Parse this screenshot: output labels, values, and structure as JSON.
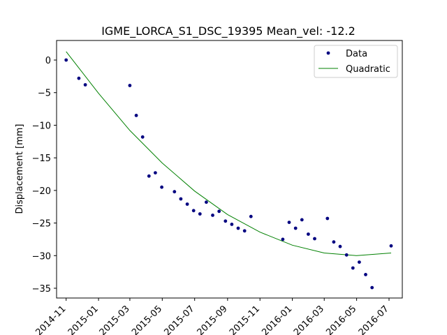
{
  "chart_data": {
    "type": "scatter",
    "title": "IGME_LORCA_S1_DSC_19395    Mean_vel: -12.2",
    "xlabel": "",
    "ylabel": "Displacement [mm]",
    "xlim": [
      "2014-10-14",
      "2016-07-26"
    ],
    "ylim": [
      -36.5,
      3
    ],
    "grid": false,
    "legend_position": "top-right",
    "x_ticks": [
      "2014-11",
      "2015-01",
      "2015-03",
      "2015-05",
      "2015-07",
      "2015-09",
      "2015-11",
      "2016-01",
      "2016-03",
      "2016-05",
      "2016-07"
    ],
    "y_ticks": [
      0,
      -5,
      -10,
      -15,
      -20,
      -25,
      -30,
      -35
    ],
    "series": [
      {
        "name": "Data",
        "style": "points",
        "color": "#000080",
        "x": [
          "2014-11-01",
          "2014-11-25",
          "2014-12-07",
          "2015-03-01",
          "2015-03-13",
          "2015-03-25",
          "2015-04-06",
          "2015-04-18",
          "2015-04-30",
          "2015-05-24",
          "2015-06-05",
          "2015-06-17",
          "2015-06-29",
          "2015-07-11",
          "2015-07-23",
          "2015-08-04",
          "2015-08-16",
          "2015-08-28",
          "2015-09-09",
          "2015-09-21",
          "2015-10-03",
          "2015-10-15",
          "2015-12-14",
          "2015-12-26",
          "2016-01-07",
          "2016-01-19",
          "2016-01-31",
          "2016-02-12",
          "2016-03-07",
          "2016-03-19",
          "2016-03-31",
          "2016-04-12",
          "2016-04-24",
          "2016-05-06",
          "2016-05-18",
          "2016-05-30",
          "2016-07-05"
        ],
        "values": [
          0.0,
          -2.8,
          -3.8,
          -3.9,
          -8.5,
          -11.8,
          -17.8,
          -17.3,
          -19.5,
          -20.2,
          -21.3,
          -22.1,
          -23.1,
          -23.6,
          -21.8,
          -23.8,
          -23.2,
          -24.7,
          -25.2,
          -25.8,
          -26.2,
          -24.0,
          -27.5,
          -24.9,
          -25.8,
          -24.5,
          -26.7,
          -27.4,
          -24.3,
          -27.9,
          -28.6,
          -29.9,
          -31.9,
          -31.0,
          -32.9,
          -34.9,
          -28.5
        ]
      },
      {
        "name": "Quadratic",
        "style": "line",
        "color": "#008000",
        "x": [
          "2014-11-01",
          "2015-01-01",
          "2015-03-01",
          "2015-05-01",
          "2015-07-01",
          "2015-09-01",
          "2015-11-01",
          "2016-01-01",
          "2016-03-01",
          "2016-05-01",
          "2016-07-05"
        ],
        "values": [
          1.3,
          -5.1,
          -10.8,
          -15.8,
          -20.1,
          -23.7,
          -26.4,
          -28.4,
          -29.6,
          -30.0,
          -29.6
        ]
      }
    ]
  }
}
